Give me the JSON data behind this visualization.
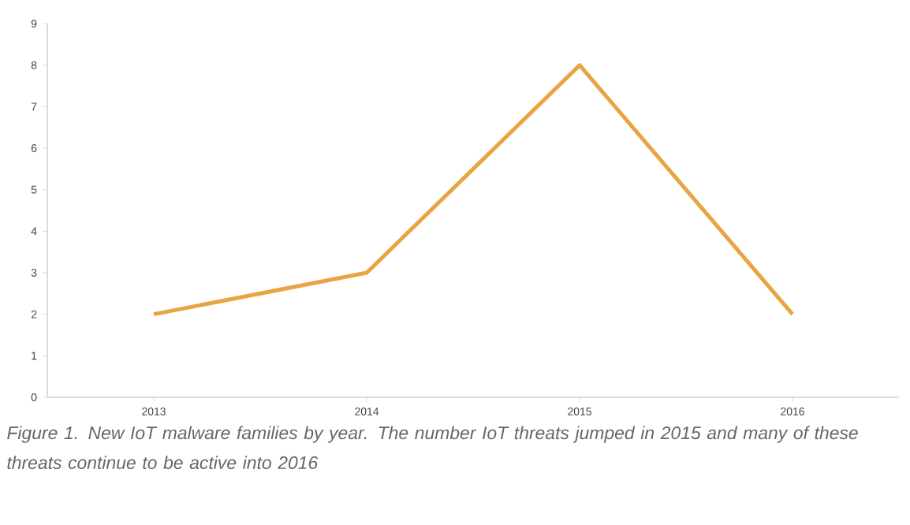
{
  "chart_data": {
    "type": "line",
    "categories": [
      "2013",
      "2014",
      "2015",
      "2016"
    ],
    "values": [
      2,
      3,
      8,
      2
    ],
    "color": "#e8a443",
    "ylim": [
      0,
      9
    ],
    "yticks": [
      0,
      1,
      2,
      3,
      4,
      5,
      6,
      7,
      8,
      9
    ],
    "annotations": [
      "Figure 1. New IoT malware families by year. The number IoT threats jumped in 2015 and many of these threats  continue to be active into 2016"
    ]
  }
}
